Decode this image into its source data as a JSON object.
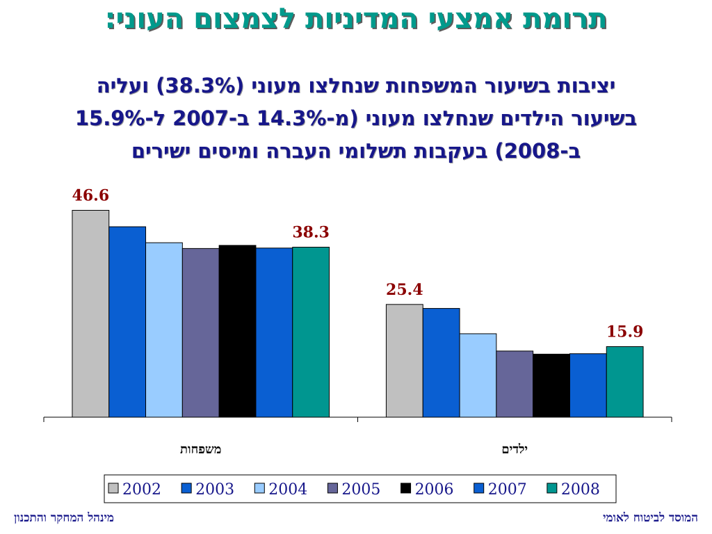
{
  "title": "תרומת אמצעי המדיניות לצמצום העוני:",
  "subtitle_lines": [
    "יציבות בשיעור המשפחות שנחלצו מעוני (38.3%) ועליה",
    "בשיעור הילדים שנחלצו מעוני (מ-14.3% ב-2007 ל-15.9%",
    "ב-2008) בעקבות תשלומי העברה ומיסים ישירים"
  ],
  "footer": {
    "left": "מינהל המחקר והתכנון",
    "right": "המוסד לביטוח לאומי"
  },
  "chart_data": {
    "type": "bar",
    "categories": [
      "משפחות",
      "ילדים"
    ],
    "series": [
      {
        "name": "2002",
        "color": "#c0c0c0",
        "values": [
          46.6,
          25.4
        ]
      },
      {
        "name": "2003",
        "color": "#0a5fd2",
        "values": [
          42.9,
          24.5
        ]
      },
      {
        "name": "2004",
        "color": "#99ccff",
        "values": [
          39.3,
          18.8
        ]
      },
      {
        "name": "2005",
        "color": "#666699",
        "values": [
          38.0,
          14.9
        ]
      },
      {
        "name": "2006",
        "color": "#000000",
        "values": [
          38.7,
          14.2
        ]
      },
      {
        "name": "2007",
        "color": "#0a5fd2",
        "values": [
          38.1,
          14.3
        ]
      },
      {
        "name": "2008",
        "color": "#009690",
        "values": [
          38.3,
          15.9
        ]
      }
    ],
    "data_labels": [
      {
        "category": 0,
        "series": 0,
        "text": "46.6"
      },
      {
        "category": 0,
        "series": 6,
        "text": "38.3"
      },
      {
        "category": 1,
        "series": 0,
        "text": "25.4"
      },
      {
        "category": 1,
        "series": 6,
        "text": "15.9"
      }
    ],
    "ylim": [
      0,
      52
    ],
    "grid": false,
    "legend_position": "bottom",
    "label_color": "#8b0000",
    "legend_text_color": "#17178a"
  }
}
